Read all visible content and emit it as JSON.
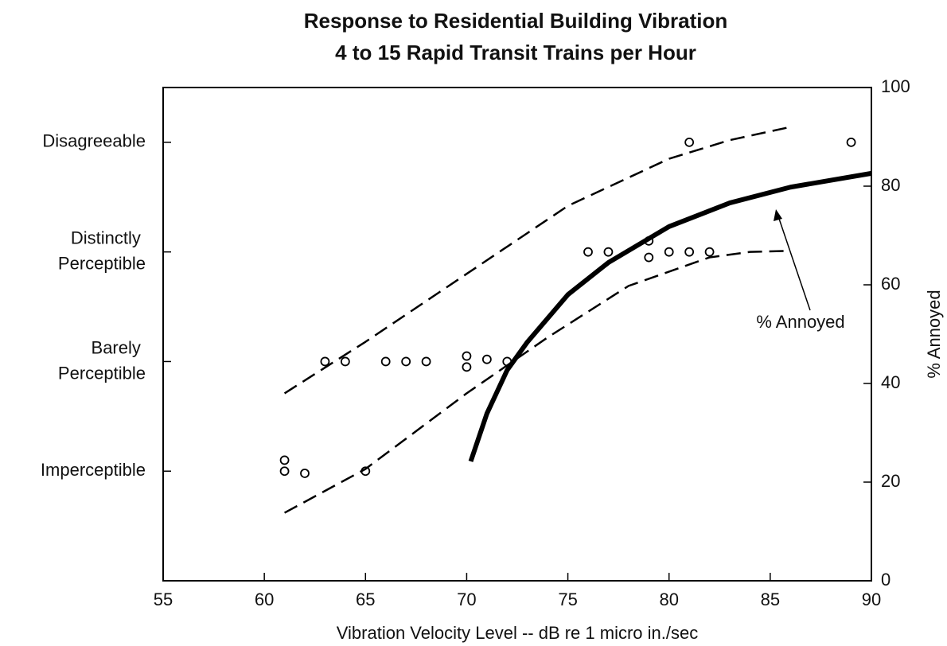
{
  "chart_data": {
    "type": "line",
    "title": "Response to Residential Building Vibration",
    "subtitle": "4 to 15 Rapid Transit Trains per Hour",
    "xlabel": "Vibration Velocity Level -- dB re 1 micro in./sec",
    "y2label": "% Annoyed",
    "annotation": "% Annoyed",
    "xlim": [
      55,
      90
    ],
    "xticks": [
      55,
      60,
      65,
      70,
      75,
      80,
      85,
      90
    ],
    "ylim": [
      0,
      4.5
    ],
    "yticks": [
      {
        "value": 1,
        "label": "Imperceptible"
      },
      {
        "value": 2,
        "label": "Barely Perceptible"
      },
      {
        "value": 3,
        "label": "Distinctly Perceptible"
      },
      {
        "value": 4,
        "label": "Disagreeable"
      }
    ],
    "y2lim": [
      0,
      100
    ],
    "y2ticks": [
      0,
      20,
      40,
      60,
      80,
      100
    ],
    "series": [
      {
        "type": "scatter",
        "color": "#000000",
        "x": [
          61,
          61,
          62,
          65,
          63,
          64,
          66,
          67,
          68,
          70,
          70,
          71,
          72,
          76,
          77,
          79,
          79,
          80,
          81,
          82,
          81,
          89
        ],
        "values": [
          1.1,
          1,
          0.98,
          1,
          2,
          2,
          2,
          2,
          2,
          2.05,
          1.95,
          2.02,
          2,
          3,
          3,
          3.1,
          2.95,
          3,
          3,
          3,
          4,
          4
        ]
      },
      {
        "type": "line",
        "style": "dashed",
        "color": "#000000",
        "x": [
          61,
          65,
          70,
          75,
          80,
          83,
          86
        ],
        "values": [
          1.71,
          2.18,
          2.8,
          3.42,
          3.85,
          4.02,
          4.14
        ]
      },
      {
        "type": "line",
        "style": "dashed",
        "color": "#000000",
        "x": [
          61,
          65,
          70,
          74,
          78,
          82,
          84,
          86
        ],
        "values": [
          0.62,
          1.02,
          1.71,
          2.22,
          2.69,
          2.95,
          3.0,
          3.01
        ]
      },
      {
        "type": "line",
        "style": "solid",
        "color": "#000000",
        "axis": "y2",
        "x": [
          70.2,
          71,
          72,
          73,
          75,
          77,
          80,
          83,
          86,
          90
        ],
        "values": [
          24.2,
          33.9,
          42.7,
          48.4,
          58,
          64.5,
          71.8,
          76.6,
          79.8,
          82.6
        ]
      }
    ]
  }
}
